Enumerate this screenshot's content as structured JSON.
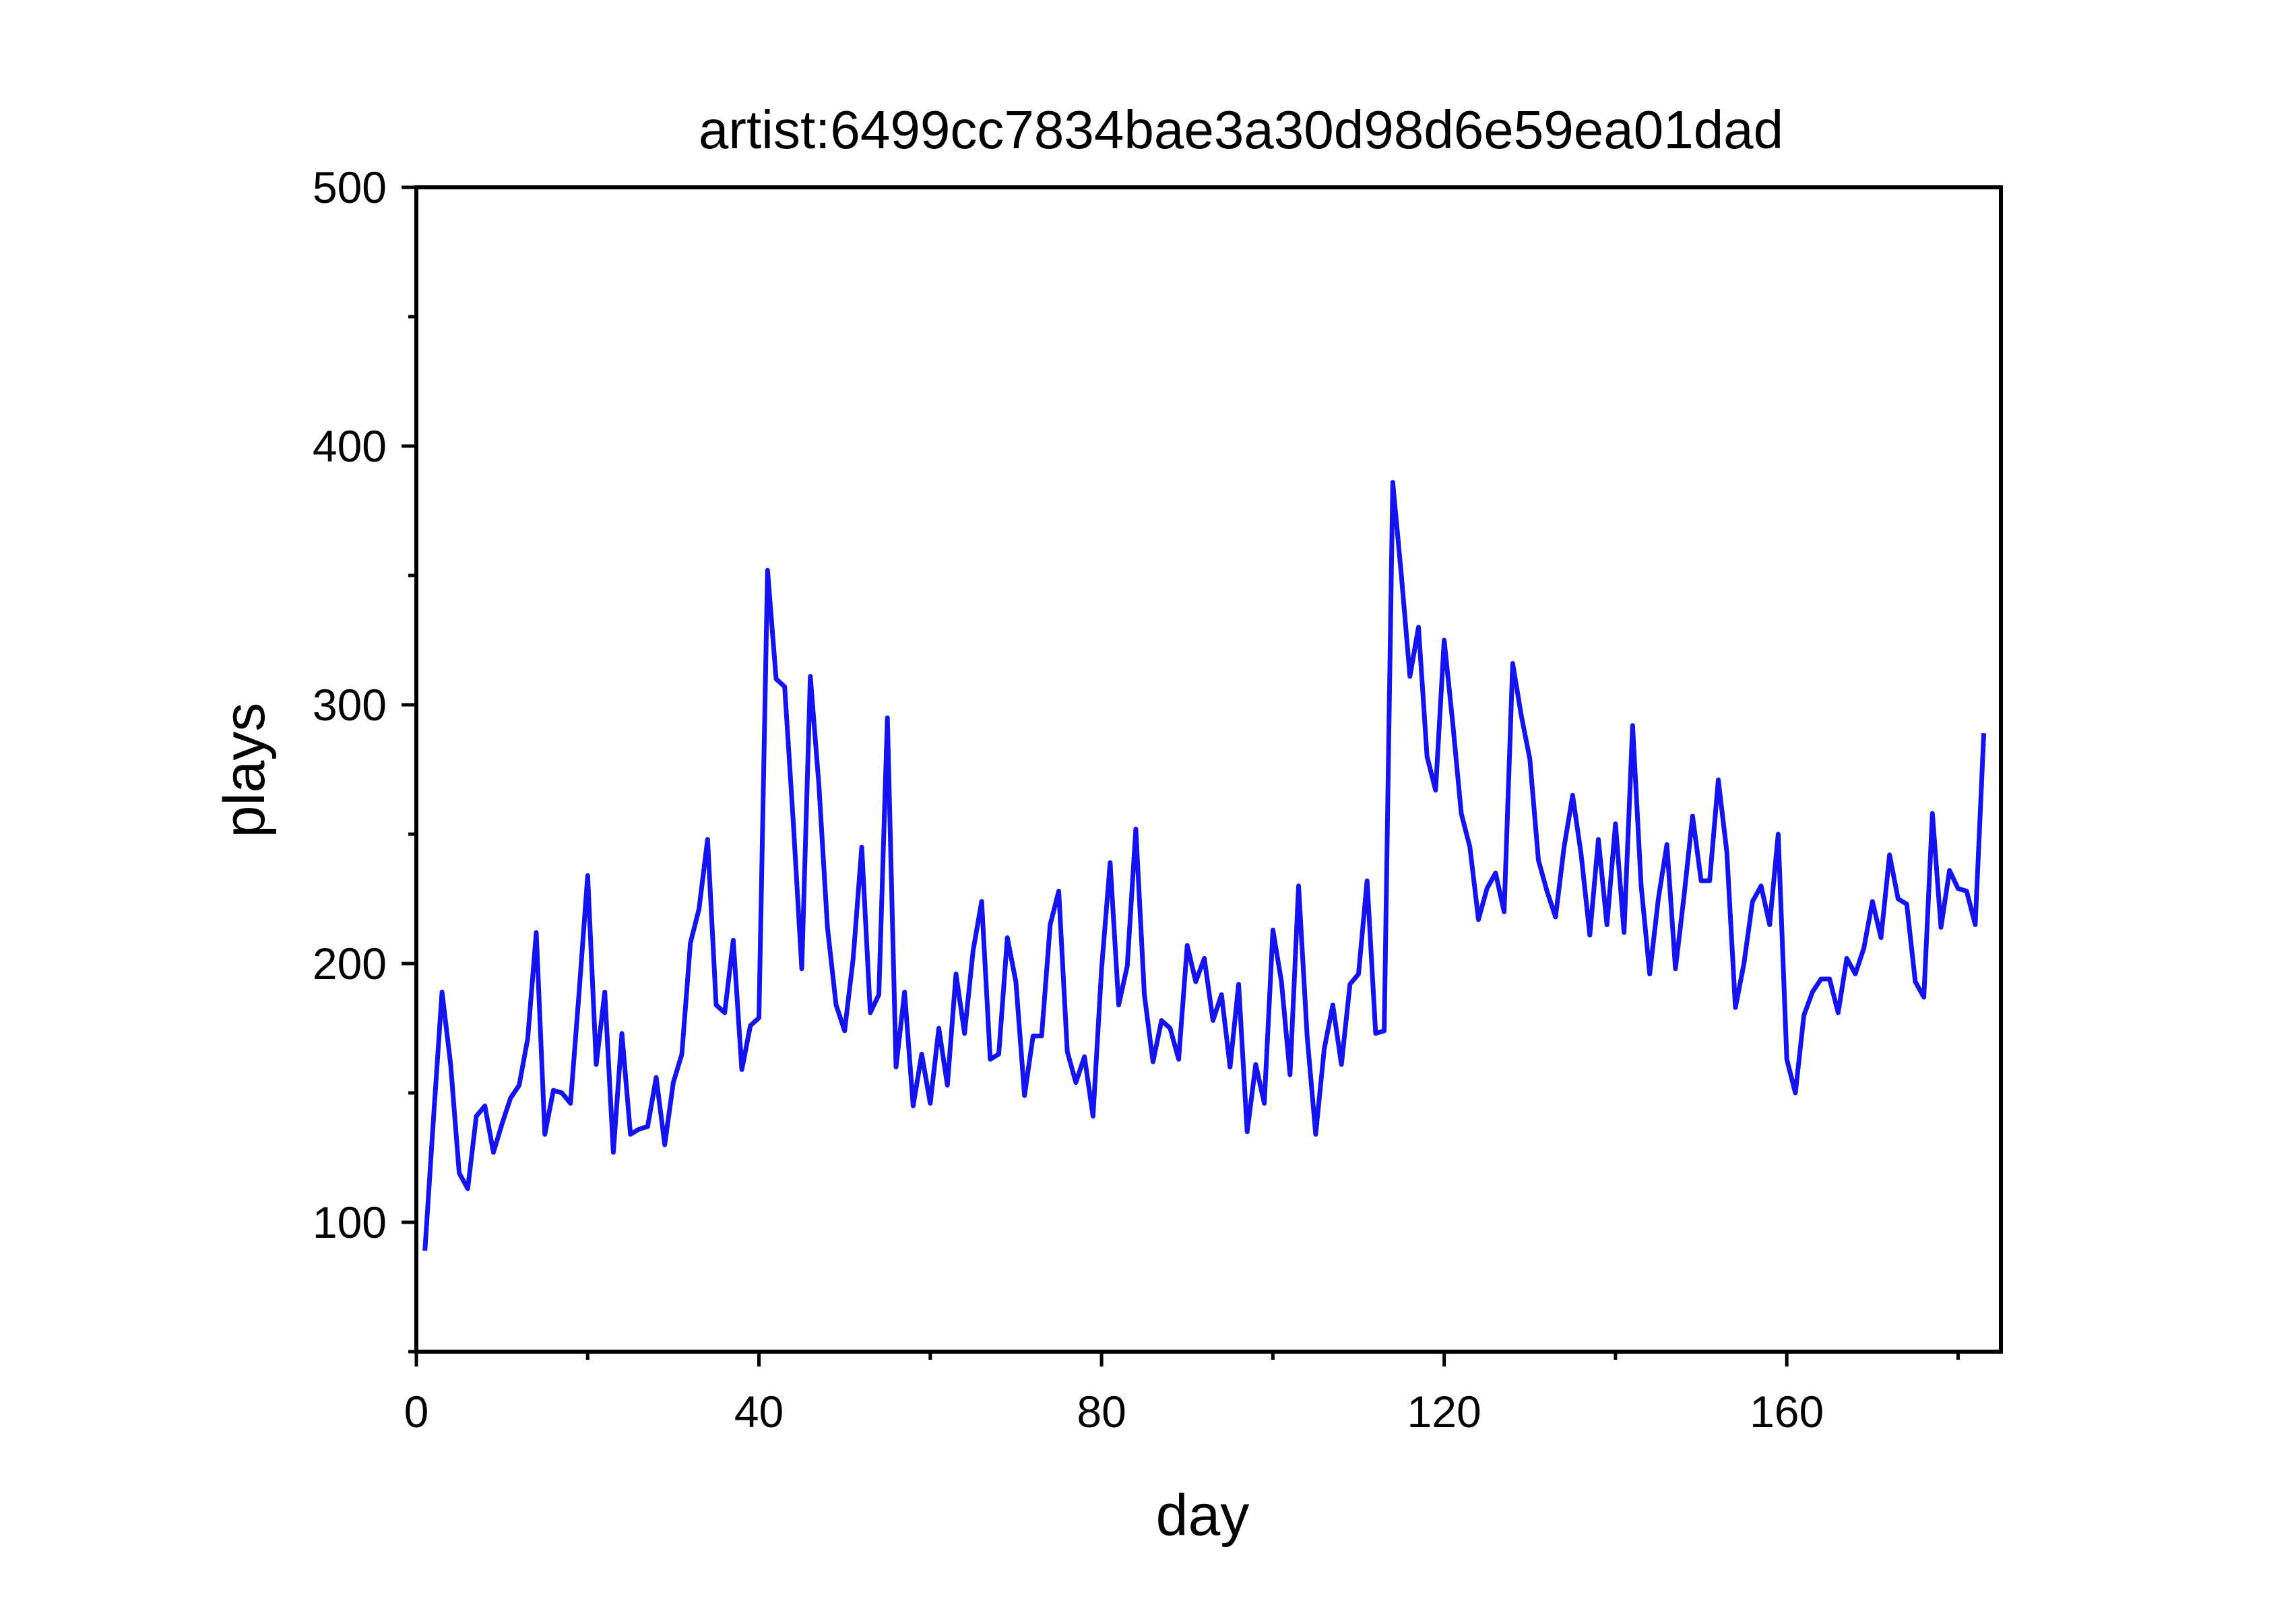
{
  "chart_data": {
    "type": "line",
    "title": "artist:6499cc7834bae3a30d98d6e59ea01dad",
    "xlabel": "day",
    "ylabel": "plays",
    "xlim": [
      0,
      185
    ],
    "ylim": [
      50,
      500
    ],
    "xticks": [
      0,
      40,
      80,
      120,
      160
    ],
    "xticks_minor": [
      20,
      60,
      100,
      140,
      180
    ],
    "yticks": [
      100,
      200,
      300,
      400,
      500
    ],
    "yticks_minor": [
      50,
      150,
      250,
      350,
      450
    ],
    "grid": false,
    "legend": "none",
    "series": [
      {
        "color": "#1414f0",
        "x": [
          1,
          2,
          3,
          4,
          5,
          6,
          7,
          8,
          9,
          10,
          11,
          12,
          13,
          14,
          15,
          16,
          17,
          18,
          19,
          20,
          21,
          22,
          23,
          24,
          25,
          26,
          27,
          28,
          29,
          30,
          31,
          32,
          33,
          34,
          35,
          36,
          37,
          38,
          39,
          40,
          41,
          42,
          43,
          44,
          45,
          46,
          47,
          48,
          49,
          50,
          51,
          52,
          53,
          54,
          55,
          56,
          57,
          58,
          59,
          60,
          61,
          62,
          63,
          64,
          65,
          66,
          67,
          68,
          69,
          70,
          71,
          72,
          73,
          74,
          75,
          76,
          77,
          78,
          79,
          80,
          81,
          82,
          83,
          84,
          85,
          86,
          87,
          88,
          89,
          90,
          91,
          92,
          93,
          94,
          95,
          96,
          97,
          98,
          99,
          100,
          101,
          102,
          103,
          104,
          105,
          106,
          107,
          108,
          109,
          110,
          111,
          112,
          113,
          114,
          115,
          116,
          117,
          118,
          119,
          120,
          121,
          122,
          123,
          124,
          125,
          126,
          127,
          128,
          129,
          130,
          131,
          132,
          133,
          134,
          135,
          136,
          137,
          138,
          139,
          140,
          141,
          142,
          143,
          144,
          145,
          146,
          147,
          148,
          149,
          150,
          151,
          152,
          153,
          154,
          155,
          156,
          157,
          158,
          159,
          160,
          161,
          162,
          163,
          164,
          165,
          166,
          167,
          168,
          169,
          170,
          171,
          172,
          173,
          174,
          175,
          176,
          177,
          178,
          179,
          180,
          181,
          182,
          183
        ],
        "y": [
          89,
          140,
          189,
          161,
          119,
          113,
          141,
          145,
          127,
          138,
          148,
          153,
          171,
          212,
          134,
          151,
          150,
          146,
          189,
          234,
          161,
          189,
          127,
          173,
          134,
          136,
          137,
          156,
          130,
          154,
          165,
          208,
          221,
          248,
          184,
          181,
          209,
          159,
          176,
          179,
          352,
          310,
          307,
          255,
          198,
          311,
          269,
          214,
          184,
          174,
          202,
          245,
          181,
          188,
          295,
          160,
          189,
          145,
          165,
          146,
          175,
          153,
          196,
          173,
          205,
          224,
          163,
          165,
          210,
          193,
          149,
          172,
          172,
          215,
          228,
          166,
          154,
          164,
          141,
          198,
          239,
          184,
          199,
          252,
          188,
          162,
          178,
          175,
          163,
          207,
          193,
          202,
          178,
          188,
          160,
          192,
          135,
          161,
          146,
          213,
          193,
          157,
          230,
          172,
          134,
          167,
          184,
          161,
          192,
          196,
          232,
          173,
          174,
          386,
          350,
          311,
          330,
          280,
          267,
          325,
          293,
          258,
          245,
          217,
          229,
          235,
          220,
          316,
          296,
          279,
          240,
          228,
          218,
          245,
          265,
          242,
          211,
          248,
          215,
          254,
          212,
          292,
          230,
          196,
          225,
          246,
          198,
          226,
          257,
          232,
          232,
          271,
          243,
          183,
          200,
          224,
          230,
          215,
          250,
          163,
          150,
          180,
          189,
          194,
          194,
          181,
          202,
          196,
          206,
          224,
          210,
          242,
          225,
          223,
          193,
          187,
          258,
          214,
          236,
          229,
          228,
          215,
          289
        ]
      }
    ]
  }
}
